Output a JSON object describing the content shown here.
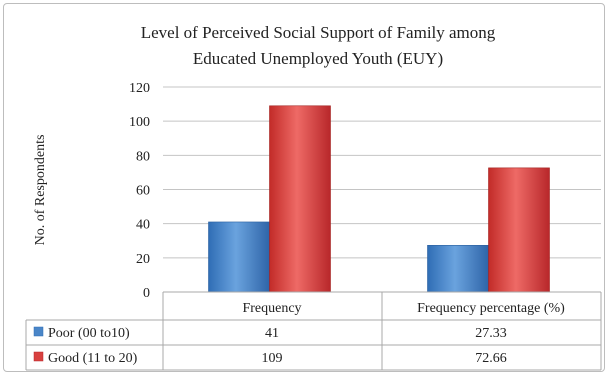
{
  "chart_data": {
    "type": "bar",
    "title_line1": "Level of Perceived Social Support of Family among",
    "title_line2": "Educated Unemployed Youth (EUY)",
    "ylabel": "No. of Respondents",
    "ylim": [
      0,
      120
    ],
    "yticks": [
      0,
      20,
      40,
      60,
      80,
      100,
      120
    ],
    "categories": [
      "Frequency",
      "Frequency percentage (%)"
    ],
    "series": [
      {
        "name": "Poor  (00 to10)",
        "values": [
          41,
          27.33
        ],
        "value_labels": [
          "41",
          "27.33"
        ],
        "color": "#4a86c8"
      },
      {
        "name": "Good (11 to 20)",
        "values": [
          109,
          72.66
        ],
        "value_labels": [
          "109",
          "72.66"
        ],
        "color": "#d8413f"
      }
    ],
    "grid": true,
    "legend": "data-table"
  }
}
